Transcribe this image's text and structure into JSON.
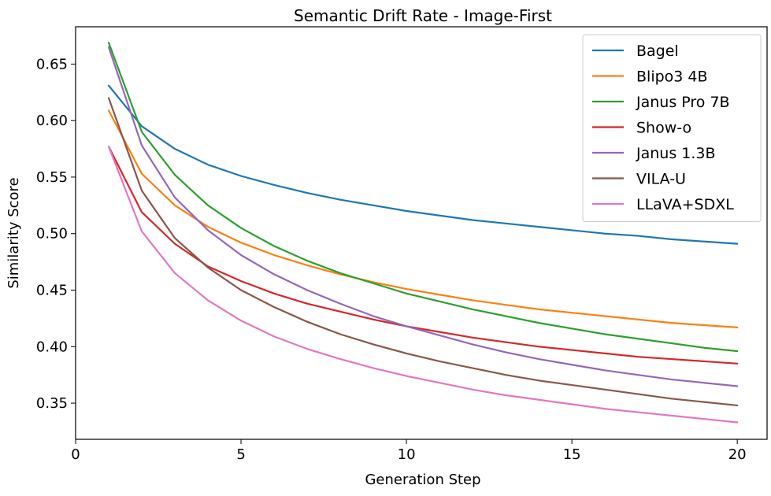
{
  "chart_data": {
    "type": "line",
    "title": "Semantic Drift Rate - Image-First",
    "xlabel": "Generation Step",
    "ylabel": "Similarity Score",
    "xlim": [
      0,
      20.9
    ],
    "ylim": [
      0.318,
      0.683
    ],
    "xticks": [
      0,
      5,
      10,
      15,
      20
    ],
    "xtick_labels": [
      "0",
      "5",
      "10",
      "15",
      "20"
    ],
    "yticks": [
      0.35,
      0.4,
      0.45,
      0.5,
      0.55,
      0.6,
      0.65
    ],
    "ytick_labels": [
      "0.35",
      "0.40",
      "0.45",
      "0.50",
      "0.55",
      "0.60",
      "0.65"
    ],
    "grid": false,
    "legend_position": "top-right",
    "x": [
      1,
      2,
      3,
      4,
      5,
      6,
      7,
      8,
      9,
      10,
      11,
      12,
      13,
      14,
      15,
      16,
      17,
      18,
      19,
      20
    ],
    "series": [
      {
        "name": "Bagel",
        "color": "#1f77b4",
        "values": [
          0.631,
          0.595,
          0.575,
          0.561,
          0.551,
          0.543,
          0.536,
          0.53,
          0.525,
          0.52,
          0.516,
          0.512,
          0.509,
          0.506,
          0.503,
          0.5,
          0.498,
          0.495,
          0.493,
          0.491
        ]
      },
      {
        "name": "Blipo3 4B",
        "color": "#ff7f0e",
        "values": [
          0.609,
          0.553,
          0.525,
          0.506,
          0.492,
          0.481,
          0.472,
          0.464,
          0.457,
          0.451,
          0.446,
          0.441,
          0.437,
          0.433,
          0.43,
          0.427,
          0.424,
          0.421,
          0.419,
          0.417
        ]
      },
      {
        "name": "Janus Pro 7B",
        "color": "#2ca02c",
        "values": [
          0.669,
          0.59,
          0.552,
          0.525,
          0.505,
          0.489,
          0.476,
          0.465,
          0.456,
          0.447,
          0.44,
          0.433,
          0.427,
          0.421,
          0.416,
          0.411,
          0.407,
          0.403,
          0.399,
          0.396
        ]
      },
      {
        "name": "Show-o",
        "color": "#d62728",
        "values": [
          0.577,
          0.519,
          0.491,
          0.471,
          0.458,
          0.447,
          0.438,
          0.431,
          0.424,
          0.418,
          0.413,
          0.408,
          0.404,
          0.4,
          0.397,
          0.394,
          0.391,
          0.389,
          0.387,
          0.385
        ]
      },
      {
        "name": "Janus 1.3B",
        "color": "#9467bd",
        "values": [
          0.665,
          0.578,
          0.532,
          0.503,
          0.481,
          0.464,
          0.45,
          0.438,
          0.427,
          0.418,
          0.41,
          0.402,
          0.395,
          0.389,
          0.384,
          0.379,
          0.375,
          0.371,
          0.368,
          0.365
        ]
      },
      {
        "name": "VILA-U",
        "color": "#8c564b",
        "values": [
          0.62,
          0.538,
          0.496,
          0.47,
          0.45,
          0.435,
          0.422,
          0.411,
          0.402,
          0.394,
          0.387,
          0.381,
          0.375,
          0.37,
          0.366,
          0.362,
          0.358,
          0.354,
          0.351,
          0.348
        ]
      },
      {
        "name": "LLaVA+SDXL",
        "color": "#e377c2",
        "values": [
          0.577,
          0.502,
          0.465,
          0.441,
          0.423,
          0.409,
          0.398,
          0.389,
          0.381,
          0.374,
          0.368,
          0.362,
          0.357,
          0.353,
          0.349,
          0.345,
          0.342,
          0.339,
          0.336,
          0.333
        ]
      }
    ]
  }
}
